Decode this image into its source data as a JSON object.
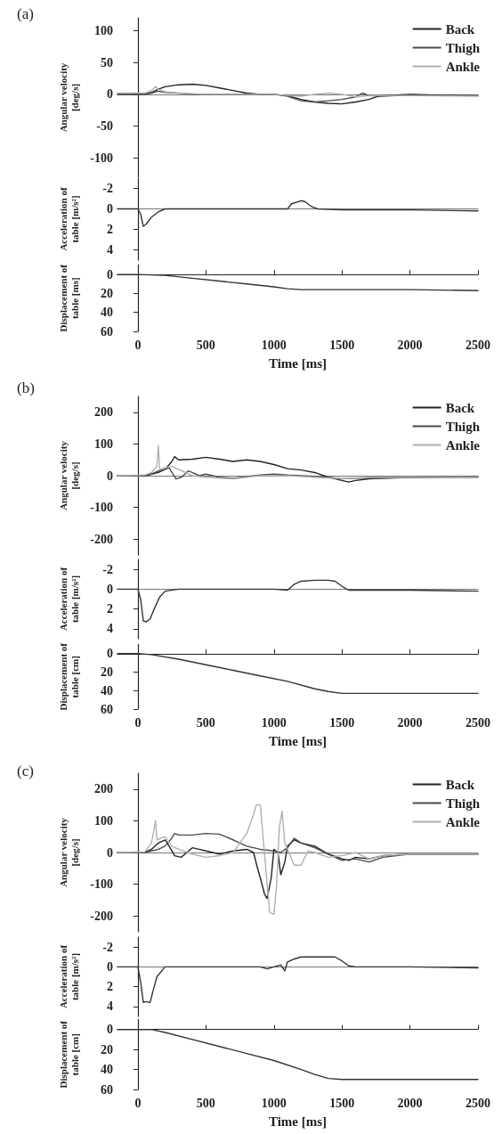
{
  "chart_data": [
    {
      "type": "line",
      "title": "(a)",
      "ylabel": "Angular velocity [deg/s]",
      "legend": "top right",
      "marker": "none",
      "tick_labels": "y",
      "xlim": [
        -150,
        2500
      ],
      "ylim": [
        -130,
        120
      ],
      "yticks": [
        -100,
        -50,
        0,
        50,
        100
      ],
      "series": [
        {
          "name": "Back",
          "color": "#222222",
          "x": [
            -150,
            0,
            50,
            100,
            150,
            200,
            300,
            400,
            500,
            600,
            700,
            800,
            900,
            1000,
            1100,
            1200,
            1300,
            1400,
            1500,
            1600,
            1700,
            1750,
            1800,
            1900,
            2000,
            2200,
            2500
          ],
          "values": [
            0,
            0,
            0,
            3,
            8,
            12,
            15,
            16,
            14,
            10,
            6,
            2,
            0,
            0,
            -2,
            -8,
            -12,
            -14,
            -15,
            -12,
            -8,
            -4,
            -2,
            -1,
            0,
            -1,
            -2
          ]
        },
        {
          "name": "Thigh",
          "color": "#4a4a4a",
          "x": [
            -150,
            50,
            100,
            150,
            200,
            300,
            400,
            600,
            800,
            1000,
            1100,
            1200,
            1300,
            1400,
            1500,
            1600,
            1650,
            1700,
            1800,
            2000,
            2500
          ],
          "values": [
            0,
            0,
            2,
            5,
            3,
            2,
            0,
            0,
            0,
            0,
            -3,
            -10,
            -12,
            -10,
            -8,
            -4,
            2,
            -2,
            -3,
            -1,
            -2
          ]
        },
        {
          "name": "Ankle",
          "color": "#b0b0b0",
          "x": [
            -150,
            50,
            100,
            130,
            150,
            200,
            300,
            500,
            1000,
            1100,
            1200,
            1300,
            1400,
            1500,
            1600,
            1700,
            1800,
            2000,
            2500
          ],
          "values": [
            2,
            2,
            6,
            12,
            8,
            4,
            2,
            0,
            0,
            -2,
            -3,
            0,
            2,
            0,
            -4,
            -2,
            -2,
            -2,
            -3
          ]
        }
      ]
    },
    {
      "type": "line",
      "ylabel": "Acceleration of table [m/s²]",
      "marker": "none",
      "tick_labels": "y",
      "xlim": [
        -150,
        2500
      ],
      "ylim": [
        5,
        -3
      ],
      "yticks": [
        -2,
        0,
        2,
        4
      ],
      "series": [
        {
          "color": "#333333",
          "x": [
            -150,
            0,
            20,
            40,
            60,
            100,
            150,
            200,
            500,
            1000,
            1100,
            1130,
            1200,
            1230,
            1280,
            1320,
            1500,
            2000,
            2500
          ],
          "values": [
            0,
            0,
            0.5,
            1.7,
            1.5,
            0.8,
            0.3,
            0,
            0,
            0,
            0,
            -0.5,
            -0.8,
            -0.7,
            -0.2,
            0,
            0.1,
            0.1,
            0.2
          ]
        }
      ]
    },
    {
      "type": "line",
      "ylabel": "Displacement of table [ms]",
      "xlabel": "Time [ms]",
      "marker": "none",
      "xlim": [
        -150,
        2500
      ],
      "xticks": [
        0,
        500,
        1000,
        1500,
        2000,
        2500
      ],
      "ylim": [
        60,
        -10
      ],
      "yticks": [
        0,
        20,
        40,
        60
      ],
      "series": [
        {
          "color": "#333333",
          "x": [
            -150,
            0,
            200,
            400,
            600,
            800,
            1000,
            1100,
            1200,
            1400,
            1600,
            2000,
            2500
          ],
          "values": [
            0,
            0,
            1,
            4,
            7,
            10,
            13,
            15,
            16,
            16,
            16,
            16,
            17
          ]
        }
      ]
    },
    {
      "type": "line",
      "title": "(b)",
      "ylabel": "Angular velocity [deg/s]",
      "legend": "top right",
      "marker": "none",
      "tick_labels": "y",
      "xlim": [
        -150,
        2500
      ],
      "ylim": [
        -250,
        250
      ],
      "yticks": [
        -200,
        -100,
        0,
        100,
        200
      ],
      "series": [
        {
          "name": "Back",
          "color": "#222222",
          "x": [
            -150,
            50,
            100,
            150,
            200,
            250,
            270,
            300,
            400,
            500,
            600,
            700,
            800,
            900,
            1000,
            1100,
            1200,
            1300,
            1400,
            1500,
            1550,
            1600,
            1700,
            1800,
            2000,
            2200,
            2500
          ],
          "values": [
            0,
            0,
            5,
            10,
            20,
            45,
            60,
            50,
            52,
            58,
            52,
            45,
            50,
            45,
            35,
            22,
            18,
            10,
            -5,
            -15,
            -20,
            -15,
            -10,
            -8,
            -6,
            -5,
            -5
          ]
        },
        {
          "name": "Thigh",
          "color": "#4a4a4a",
          "x": [
            -150,
            50,
            100,
            150,
            200,
            230,
            250,
            280,
            320,
            370,
            400,
            450,
            500,
            600,
            700,
            800,
            900,
            1000,
            1100,
            1200,
            1400,
            1500,
            1600,
            1800,
            2000,
            2500
          ],
          "values": [
            0,
            0,
            5,
            15,
            20,
            25,
            10,
            -10,
            -5,
            15,
            10,
            0,
            5,
            -5,
            -8,
            -3,
            2,
            5,
            2,
            0,
            -5,
            -10,
            -8,
            -8,
            -5,
            -3
          ]
        },
        {
          "name": "Ankle",
          "color": "#b0b0b0",
          "x": [
            -150,
            50,
            100,
            140,
            150,
            160,
            200,
            250,
            300,
            400,
            500,
            700,
            900,
            1100,
            1300,
            1500,
            1700,
            2000,
            2500
          ],
          "values": [
            0,
            2,
            10,
            30,
            95,
            20,
            25,
            30,
            20,
            0,
            -5,
            -10,
            0,
            0,
            -5,
            -10,
            -5,
            -5,
            -5
          ]
        }
      ]
    },
    {
      "type": "line",
      "ylabel": "Acceleration of table [m/s²]",
      "marker": "none",
      "tick_labels": "y",
      "xlim": [
        -150,
        2500
      ],
      "ylim": [
        5,
        -3
      ],
      "yticks": [
        -2,
        0,
        2,
        4
      ],
      "series": [
        {
          "color": "#333333",
          "x": [
            -150,
            0,
            20,
            40,
            60,
            90,
            120,
            160,
            200,
            300,
            1000,
            1100,
            1150,
            1200,
            1300,
            1400,
            1450,
            1500,
            1550,
            2000,
            2500
          ],
          "values": [
            0,
            0,
            1,
            3.2,
            3.3,
            3,
            2,
            0.8,
            0.2,
            0,
            0,
            0.1,
            -0.5,
            -0.8,
            -0.9,
            -0.9,
            -0.8,
            -0.3,
            0.1,
            0.1,
            0.2
          ]
        }
      ]
    },
    {
      "type": "line",
      "ylabel": "Displacement of table [cm]",
      "xlabel": "Time [ms]",
      "marker": "none",
      "xlim": [
        -150,
        2500
      ],
      "xticks": [
        0,
        500,
        1000,
        1500,
        2000,
        2500
      ],
      "ylim": [
        60,
        -10
      ],
      "yticks": [
        0,
        20,
        40,
        60
      ],
      "series": [
        {
          "color": "#333333",
          "x": [
            -150,
            0,
            100,
            300,
            500,
            700,
            900,
            1100,
            1300,
            1400,
            1500,
            2000,
            2500
          ],
          "values": [
            0,
            0,
            1,
            6,
            12,
            18,
            24,
            30,
            38,
            41,
            43,
            43,
            43
          ]
        }
      ]
    },
    {
      "type": "line",
      "title": "(c)",
      "ylabel": "Angular velocity [deg/s]",
      "legend": "top right",
      "marker": "none",
      "tick_labels": "y",
      "xlim": [
        -150,
        2500
      ],
      "ylim": [
        -250,
        250
      ],
      "yticks": [
        -200,
        -100,
        0,
        100,
        200
      ],
      "series": [
        {
          "name": "Back",
          "color": "#222222",
          "x": [
            -150,
            50,
            100,
            150,
            200,
            230,
            270,
            320,
            400,
            450,
            500,
            600,
            700,
            800,
            850,
            880,
            900,
            930,
            950,
            980,
            1000,
            1030,
            1050,
            1080,
            1100,
            1150,
            1200,
            1300,
            1400,
            1500,
            1550,
            1600,
            1700,
            1800,
            2000,
            2500
          ],
          "values": [
            0,
            0,
            10,
            30,
            40,
            20,
            -10,
            -15,
            15,
            10,
            5,
            -5,
            5,
            10,
            0,
            -50,
            -80,
            -130,
            -145,
            -80,
            10,
            0,
            -70,
            -30,
            20,
            40,
            30,
            20,
            -5,
            -20,
            -25,
            -15,
            -20,
            -10,
            -5,
            -5
          ]
        },
        {
          "name": "Thigh",
          "color": "#4a4a4a",
          "x": [
            -150,
            50,
            100,
            150,
            200,
            240,
            270,
            300,
            400,
            500,
            600,
            700,
            800,
            900,
            1000,
            1050,
            1100,
            1150,
            1200,
            1300,
            1400,
            1500,
            1600,
            1700,
            1800,
            2000,
            2500
          ],
          "values": [
            0,
            0,
            5,
            10,
            20,
            40,
            60,
            55,
            55,
            60,
            58,
            40,
            20,
            10,
            5,
            0,
            15,
            45,
            30,
            15,
            -5,
            -25,
            -20,
            -30,
            -15,
            -5,
            -5
          ]
        },
        {
          "name": "Ankle",
          "color": "#b0b0b0",
          "x": [
            -150,
            50,
            100,
            130,
            140,
            200,
            250,
            300,
            400,
            500,
            600,
            700,
            800,
            850,
            870,
            900,
            920,
            950,
            970,
            1000,
            1020,
            1040,
            1060,
            1080,
            1100,
            1150,
            1200,
            1250,
            1300,
            1400,
            1500,
            1600,
            1700,
            1800,
            2000,
            2500
          ],
          "values": [
            0,
            2,
            30,
            100,
            40,
            50,
            20,
            10,
            -5,
            -15,
            -10,
            0,
            60,
            120,
            150,
            150,
            50,
            -100,
            -190,
            -195,
            -100,
            80,
            130,
            30,
            10,
            -40,
            -40,
            5,
            0,
            -15,
            -10,
            0,
            -20,
            -10,
            -5,
            -5
          ]
        }
      ]
    },
    {
      "type": "line",
      "ylabel": "Acceleration of table [m/s²]",
      "marker": "none",
      "tick_labels": "y",
      "xlim": [
        -150,
        2500
      ],
      "ylim": [
        5,
        -3
      ],
      "yticks": [
        -2,
        0,
        2,
        4
      ],
      "series": [
        {
          "color": "#333333",
          "x": [
            -150,
            0,
            20,
            40,
            60,
            90,
            110,
            140,
            200,
            900,
            950,
            1000,
            1050,
            1080,
            1100,
            1150,
            1200,
            1300,
            1400,
            1450,
            1500,
            1550,
            1600,
            2000,
            2500
          ],
          "values": [
            0,
            0,
            1.5,
            3.6,
            3.5,
            3.6,
            2.5,
            1,
            0,
            0,
            0.2,
            0,
            -0.2,
            0.4,
            -0.5,
            -0.8,
            -1,
            -1,
            -1,
            -1,
            -0.6,
            -0.1,
            0,
            0,
            0.1
          ]
        }
      ]
    },
    {
      "type": "line",
      "ylabel": "Displacement of table [cm]",
      "xlabel": "Time [ms]",
      "marker": "none",
      "xlim": [
        -150,
        2500
      ],
      "xticks": [
        0,
        500,
        1000,
        1500,
        2000,
        2500
      ],
      "ylim": [
        60,
        -10
      ],
      "yticks": [
        0,
        20,
        40,
        60
      ],
      "series": [
        {
          "color": "#333333",
          "x": [
            -150,
            0,
            100,
            200,
            400,
            600,
            800,
            1000,
            1200,
            1300,
            1400,
            1500,
            2000,
            2500
          ],
          "values": [
            0,
            0,
            0,
            3,
            10,
            17,
            24,
            31,
            40,
            45,
            49,
            50,
            50,
            50
          ]
        }
      ]
    }
  ]
}
